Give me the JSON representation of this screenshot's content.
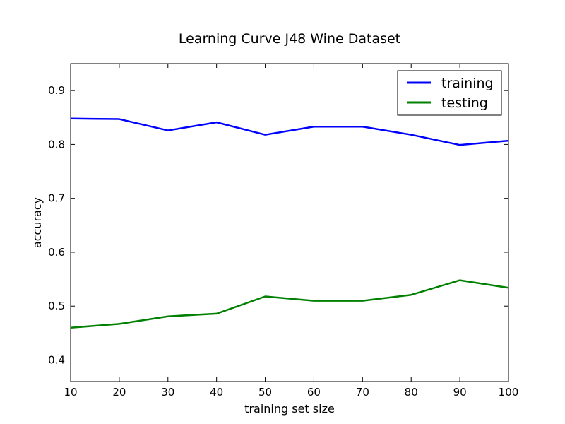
{
  "chart_data": {
    "type": "line",
    "title": "Learning Curve J48 Wine Dataset",
    "xlabel": "training set size",
    "ylabel": "accuracy",
    "xlim": [
      10,
      100
    ],
    "ylim": [
      0.36,
      0.95
    ],
    "x": [
      10,
      20,
      30,
      40,
      50,
      60,
      70,
      80,
      90,
      100
    ],
    "xticks": [
      "10",
      "20",
      "30",
      "40",
      "50",
      "60",
      "70",
      "80",
      "90",
      "100"
    ],
    "yticks": [
      "0.4",
      "0.5",
      "0.6",
      "0.7",
      "0.8",
      "0.9"
    ],
    "grid": false,
    "legend_position": "top-right",
    "series": [
      {
        "name": "training",
        "color": "#0000ff",
        "values": [
          0.848,
          0.847,
          0.826,
          0.841,
          0.818,
          0.833,
          0.833,
          0.818,
          0.799,
          0.807
        ]
      },
      {
        "name": "testing",
        "color": "#008000",
        "values": [
          0.46,
          0.467,
          0.481,
          0.486,
          0.518,
          0.51,
          0.51,
          0.521,
          0.548,
          0.534
        ]
      }
    ]
  }
}
